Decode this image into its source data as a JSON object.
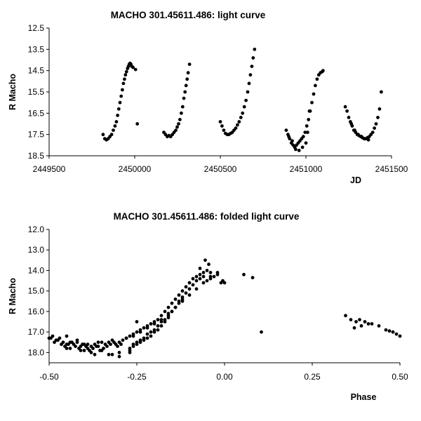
{
  "chart_data": [
    {
      "type": "scatter",
      "title": "MACHO 301.45611.486: light curve",
      "xlabel": "JD",
      "ylabel": "R Macho",
      "xlim": [
        2449500,
        2451500
      ],
      "ylim": [
        12.5,
        18.5
      ],
      "y_inverted": true,
      "xticks": [
        2449500,
        2450000,
        2450500,
        2451000,
        2451500
      ],
      "xtick_labels": [
        "2449500",
        "2450000",
        "2450500",
        "2451000",
        "2451500"
      ],
      "yticks": [
        12.5,
        13.5,
        14.5,
        15.5,
        16.5,
        17.5,
        18.5
      ],
      "ytick_labels": [
        "12.5",
        "13.5",
        "14.5",
        "15.5",
        "16.5",
        "17.5",
        "18.5"
      ],
      "grid": false,
      "marker_color": "#000000",
      "x": [
        2449815,
        2449825,
        2449835,
        2449845,
        2449855,
        2449865,
        2449875,
        2449885,
        2449893,
        2449900,
        2449907,
        2449914,
        2449921,
        2449928,
        2449934,
        2449940,
        2449946,
        2449952,
        2449958,
        2449963,
        2449968,
        2449973,
        2449978,
        2449983,
        2449990,
        2450005,
        2450015,
        2450170,
        2450180,
        2450190,
        2450200,
        2450210,
        2450220,
        2450230,
        2450240,
        2450248,
        2450256,
        2450264,
        2450272,
        2450280,
        2450287,
        2450294,
        2450300,
        2450306,
        2450312,
        2450320,
        2450500,
        2450510,
        2450520,
        2450530,
        2450540,
        2450550,
        2450560,
        2450570,
        2450580,
        2450590,
        2450600,
        2450610,
        2450620,
        2450630,
        2450640,
        2450650,
        2450660,
        2450668,
        2450676,
        2450684,
        2450692,
        2450700,
        2450885,
        2450895,
        2450905,
        2450915,
        2450925,
        2450935,
        2450945,
        2450955,
        2450965,
        2450975,
        2450985,
        2450995,
        2451005,
        2451015,
        2451025,
        2451035,
        2451045,
        2451055,
        2451065,
        2451075,
        2451085,
        2451095,
        2451100,
        2450900,
        2450920,
        2450940,
        2450960,
        2450980,
        2451000,
        2451010,
        2451020,
        2451230,
        2451240,
        2451250,
        2451260,
        2451270,
        2451280,
        2451290,
        2451300,
        2451310,
        2451320,
        2451330,
        2451340,
        2451350,
        2451360,
        2451370,
        2451380,
        2451390,
        2451400,
        2451410,
        2451420,
        2451430,
        2451440,
        2451265,
        2451285,
        2451305,
        2451325,
        2451345,
        2451365
      ],
      "y": [
        17.5,
        17.7,
        17.75,
        17.7,
        17.6,
        17.5,
        17.3,
        17.1,
        16.9,
        16.6,
        16.3,
        16.0,
        15.7,
        15.4,
        15.1,
        14.9,
        14.7,
        14.55,
        14.4,
        14.3,
        14.2,
        14.15,
        14.2,
        14.3,
        14.35,
        14.45,
        17.0,
        17.4,
        17.5,
        17.6,
        17.55,
        17.6,
        17.5,
        17.4,
        17.3,
        17.15,
        17.0,
        16.8,
        16.5,
        16.2,
        15.8,
        15.5,
        15.2,
        14.9,
        14.6,
        14.2,
        16.9,
        17.1,
        17.3,
        17.45,
        17.5,
        17.5,
        17.45,
        17.4,
        17.3,
        17.2,
        17.05,
        16.9,
        16.7,
        16.5,
        16.2,
        15.9,
        15.5,
        15.1,
        14.7,
        14.3,
        13.9,
        13.5,
        17.3,
        17.5,
        17.7,
        17.9,
        18.0,
        18.1,
        18.0,
        17.9,
        17.8,
        17.7,
        17.6,
        17.4,
        17.1,
        16.8,
        16.4,
        16.0,
        15.6,
        15.2,
        14.9,
        14.7,
        14.6,
        14.55,
        14.5,
        17.6,
        17.8,
        18.2,
        18.25,
        18.1,
        17.9,
        17.4,
        16.4,
        16.2,
        16.4,
        16.7,
        16.9,
        17.1,
        17.3,
        17.4,
        17.5,
        17.55,
        17.6,
        17.65,
        17.7,
        17.7,
        17.65,
        17.6,
        17.5,
        17.4,
        17.2,
        17.0,
        16.7,
        16.3,
        15.5,
        17.0,
        17.3,
        17.5,
        17.6,
        17.7,
        17.75
      ]
    },
    {
      "type": "scatter",
      "title": "MACHO 301.45611.486: folded light curve",
      "xlabel": "Phase",
      "ylabel": "R Macho",
      "xlim": [
        -0.5,
        0.5
      ],
      "ylim": [
        12.0,
        18.5
      ],
      "y_inverted": true,
      "xticks": [
        -0.5,
        -0.25,
        0.0,
        0.25,
        0.5
      ],
      "xtick_labels": [
        "-0.50",
        "-0.25",
        "0.00",
        "0.25",
        "0.50"
      ],
      "yticks": [
        12.0,
        13.0,
        14.0,
        15.0,
        16.0,
        17.0,
        18.0
      ],
      "ytick_labels": [
        "12.0",
        "13.0",
        "14.0",
        "15.0",
        "16.0",
        "17.0",
        "18.0"
      ],
      "grid": false,
      "marker_color": "#000000",
      "x": [
        -0.5,
        -0.49,
        -0.48,
        -0.47,
        -0.46,
        -0.45,
        -0.44,
        -0.43,
        -0.42,
        -0.41,
        -0.4,
        -0.39,
        -0.38,
        -0.37,
        -0.36,
        -0.35,
        -0.34,
        -0.33,
        -0.32,
        -0.31,
        -0.3,
        -0.29,
        -0.28,
        -0.495,
        -0.485,
        -0.475,
        -0.465,
        -0.455,
        -0.445,
        -0.435,
        -0.425,
        -0.415,
        -0.405,
        -0.395,
        -0.385,
        -0.375,
        -0.365,
        -0.355,
        -0.345,
        -0.335,
        -0.325,
        -0.315,
        -0.305,
        -0.295,
        -0.44,
        -0.41,
        -0.38,
        -0.35,
        -0.32,
        -0.3,
        -0.27,
        -0.45,
        -0.42,
        -0.39,
        -0.36,
        -0.28,
        -0.27,
        -0.26,
        -0.25,
        -0.24,
        -0.23,
        -0.22,
        -0.21,
        -0.2,
        -0.19,
        -0.18,
        -0.17,
        -0.16,
        -0.15,
        -0.14,
        -0.13,
        -0.12,
        -0.11,
        -0.1,
        -0.09,
        -0.08,
        -0.07,
        -0.06,
        -0.05,
        -0.04,
        -0.27,
        -0.26,
        -0.25,
        -0.24,
        -0.23,
        -0.22,
        -0.21,
        -0.2,
        -0.19,
        -0.18,
        -0.17,
        -0.16,
        -0.15,
        -0.14,
        -0.13,
        -0.12,
        -0.11,
        -0.1,
        -0.09,
        -0.08,
        -0.07,
        -0.06,
        -0.05,
        -0.04,
        -0.03,
        -0.02,
        -0.26,
        -0.24,
        -0.22,
        -0.2,
        -0.18,
        -0.16,
        -0.14,
        -0.12,
        -0.1,
        -0.08,
        -0.06,
        -0.04,
        -0.02,
        -0.01,
        -0.26,
        -0.25,
        -0.24,
        -0.23,
        -0.22,
        -0.21,
        -0.2,
        -0.19,
        -0.18,
        -0.17,
        -0.16,
        -0.15,
        -0.14,
        -0.13,
        -0.12,
        -0.055,
        -0.07,
        -0.045,
        -0.005,
        0.0,
        0.055,
        0.08,
        0.105,
        0.345,
        0.36,
        0.37,
        0.375,
        0.385,
        0.39,
        0.4,
        0.41,
        0.42,
        0.44,
        0.46,
        0.47,
        0.48,
        0.49,
        0.5,
        -0.33,
        -0.3,
        -0.27,
        -0.25,
        -0.4,
        -0.37,
        -0.45
      ],
      "y": [
        17.3,
        17.2,
        17.4,
        17.3,
        17.5,
        17.6,
        17.5,
        17.6,
        17.5,
        17.7,
        17.6,
        17.8,
        17.7,
        17.6,
        17.7,
        17.5,
        17.6,
        17.5,
        17.4,
        17.6,
        17.5,
        17.4,
        17.3,
        17.3,
        17.5,
        17.4,
        17.6,
        17.7,
        17.6,
        17.5,
        17.7,
        17.8,
        17.6,
        17.7,
        17.9,
        17.8,
        17.7,
        17.9,
        17.8,
        17.7,
        17.6,
        17.5,
        17.7,
        17.6,
        17.8,
        17.9,
        18.0,
        17.9,
        18.1,
        18.0,
        17.9,
        17.2,
        17.4,
        17.6,
        17.5,
        17.3,
        17.2,
        17.1,
        17.0,
        16.9,
        16.8,
        16.7,
        16.6,
        16.5,
        16.4,
        16.2,
        16.0,
        15.8,
        15.6,
        15.4,
        15.2,
        15.0,
        14.8,
        14.6,
        14.4,
        14.3,
        14.2,
        14.1,
        14.0,
        14.1,
        17.8,
        17.7,
        17.6,
        17.5,
        17.4,
        17.3,
        17.2,
        17.0,
        16.9,
        16.7,
        16.5,
        16.3,
        16.0,
        15.8,
        15.5,
        15.3,
        15.1,
        14.9,
        14.7,
        14.5,
        14.4,
        14.3,
        14.5,
        14.4,
        14.3,
        14.2,
        17.2,
        17.0,
        16.8,
        16.6,
        16.4,
        16.1,
        15.8,
        15.5,
        15.2,
        14.9,
        14.6,
        14.3,
        14.1,
        14.6,
        17.6,
        17.5,
        17.4,
        17.3,
        17.1,
        17.0,
        16.9,
        16.7,
        16.5,
        16.4,
        16.2,
        16.0,
        15.8,
        15.6,
        15.4,
        13.5,
        13.9,
        13.7,
        14.5,
        14.6,
        14.2,
        14.35,
        17.0,
        16.2,
        16.4,
        16.8,
        16.5,
        16.4,
        16.7,
        16.5,
        16.6,
        16.6,
        16.7,
        16.9,
        16.95,
        17.0,
        17.1,
        17.2,
        18.1,
        18.2,
        18.0,
        16.5,
        17.9,
        18.1,
        17.8
      ]
    }
  ]
}
